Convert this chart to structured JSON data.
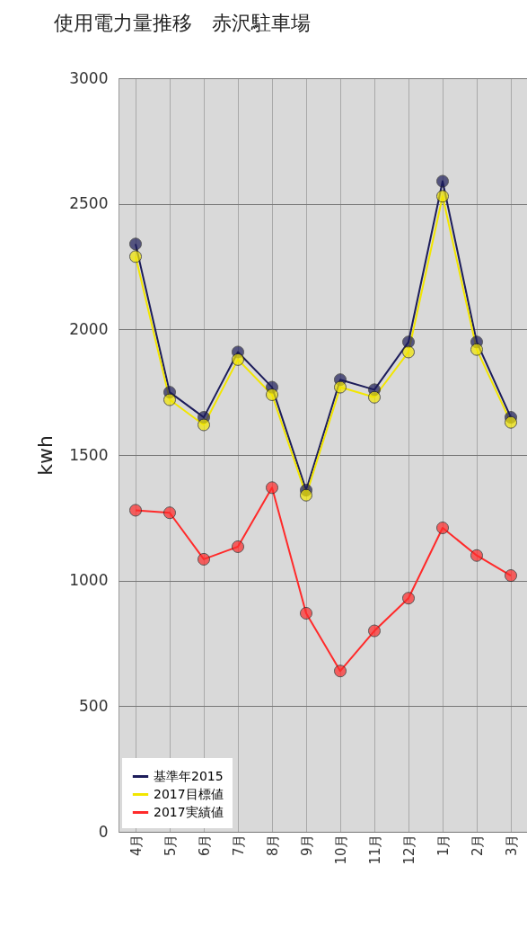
{
  "chart_data": {
    "type": "line",
    "title": "使用電力量推移　赤沢駐車場",
    "ylabel": "kwh",
    "categories": [
      "4月",
      "5月",
      "6月",
      "7月",
      "8月",
      "9月",
      "10月",
      "11月",
      "12月",
      "1月",
      "2月",
      "3月"
    ],
    "series": [
      {
        "name": "基準年2015",
        "color": "#1c1c5a",
        "values": [
          2340,
          1750,
          1650,
          1910,
          1770,
          1360,
          1800,
          1760,
          1950,
          2590,
          1950,
          1650
        ]
      },
      {
        "name": "2017目標値",
        "color": "#f2e600",
        "values": [
          2290,
          1720,
          1620,
          1880,
          1740,
          1340,
          1770,
          1730,
          1910,
          2530,
          1920,
          1630
        ]
      },
      {
        "name": "2017実績値",
        "color": "#ff2a2a",
        "values": [
          1280,
          1270,
          1085,
          1135,
          1370,
          870,
          640,
          800,
          930,
          1210,
          1100,
          1020
        ]
      }
    ],
    "ylim": [
      0,
      3000
    ],
    "yticks": [
      0,
      500,
      1000,
      1500,
      2000,
      2500,
      3000
    ],
    "grid": true,
    "legend": "bottom left",
    "marker": "circle"
  }
}
